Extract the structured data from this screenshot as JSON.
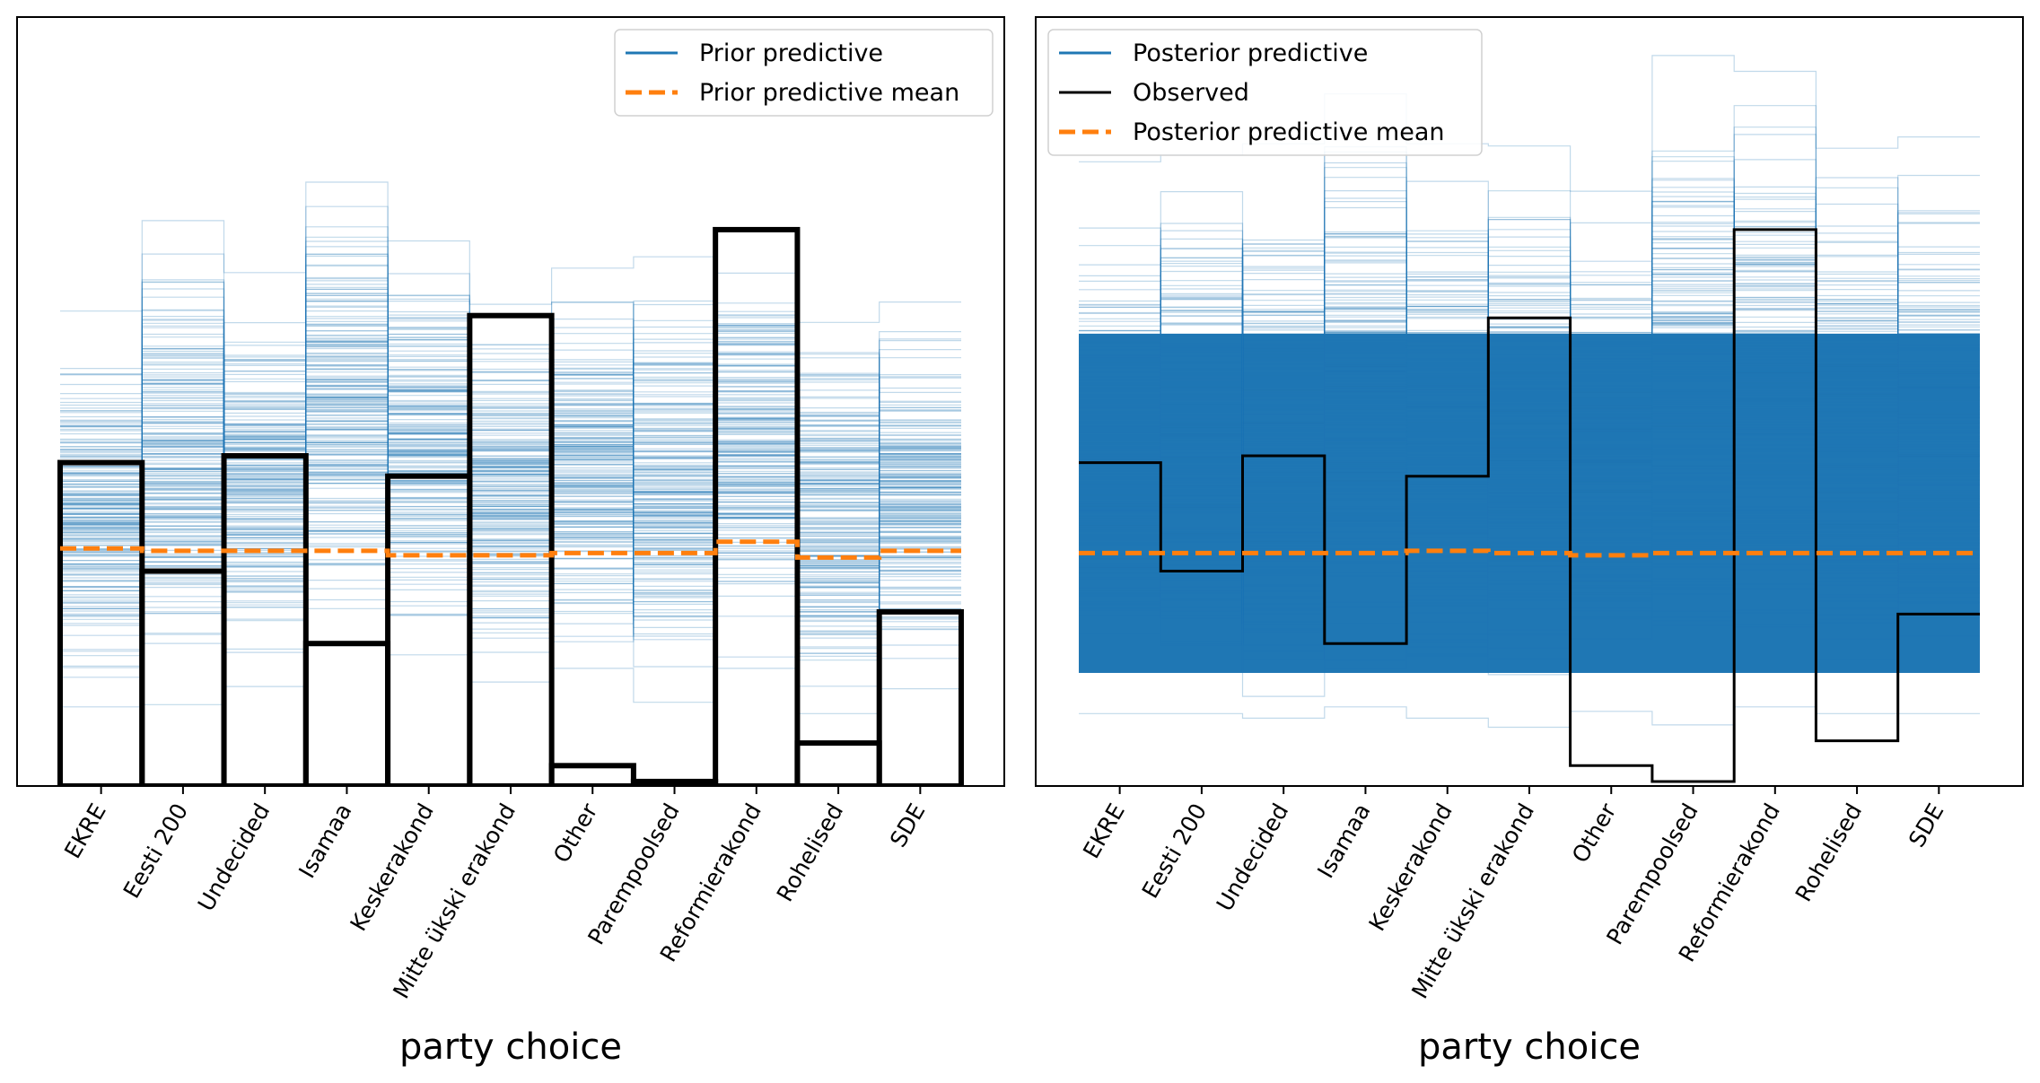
{
  "figure": {
    "background": "#ffffff",
    "colors": {
      "predictive": "#1f77b4",
      "mean": "#ff7f0e",
      "observed": "#000000"
    }
  },
  "chart_data": [
    {
      "type": "line",
      "panel": "prior",
      "title": "",
      "xlabel": "party choice",
      "ylabel": "",
      "categories": [
        "EKRE",
        "Eesti 200",
        "Undecided",
        "Isamaa",
        "Keskerakond",
        "Mitte ükski erakond",
        "Other",
        "Parempoolsed",
        "Reformierakond",
        "Rohelised",
        "SDE"
      ],
      "ylim": [
        0,
        0.34
      ],
      "legend_position": "top-right",
      "legend": [
        "Prior predictive",
        "Prior predictive mean"
      ],
      "series": [
        {
          "name": "Prior predictive mean",
          "style": "dashed",
          "values": [
            0.105,
            0.104,
            0.104,
            0.104,
            0.102,
            0.102,
            0.103,
            0.103,
            0.108,
            0.101,
            0.104
          ]
        },
        {
          "name": "Observed",
          "style": "step-bars",
          "values": [
            0.143,
            0.095,
            0.146,
            0.063,
            0.137,
            0.208,
            0.009,
            0.002,
            0.246,
            0.019,
            0.077
          ]
        }
      ],
      "samples_upper": [
        0.21,
        0.25,
        0.227,
        0.267,
        0.241,
        0.213,
        0.229,
        0.234,
        0.246,
        0.205,
        0.214
      ],
      "samples_lower": [
        0.035,
        0.036,
        0.044,
        0.062,
        0.058,
        0.046,
        0.052,
        0.037,
        0.052,
        0.032,
        0.043
      ]
    },
    {
      "type": "line",
      "panel": "posterior",
      "title": "",
      "xlabel": "party choice",
      "ylabel": "",
      "categories": [
        "EKRE",
        "Eesti 200",
        "Undecided",
        "Isamaa",
        "Keskerakond",
        "Mitte ükski erakond",
        "Other",
        "Parempoolsed",
        "Reformierakond",
        "Rohelised",
        "SDE"
      ],
      "ylim": [
        0,
        0.34
      ],
      "legend_position": "top-left",
      "legend": [
        "Posterior predictive",
        "Observed",
        "Posterior predictive mean"
      ],
      "series": [
        {
          "name": "Posterior predictive mean",
          "style": "dashed",
          "values": [
            0.103,
            0.103,
            0.103,
            0.103,
            0.104,
            0.103,
            0.102,
            0.103,
            0.103,
            0.103,
            0.103
          ]
        },
        {
          "name": "Observed",
          "style": "step",
          "values": [
            0.143,
            0.095,
            0.146,
            0.063,
            0.137,
            0.207,
            0.009,
            0.002,
            0.246,
            0.02,
            0.076
          ]
        }
      ],
      "samples_upper": [
        0.276,
        0.279,
        0.284,
        0.306,
        0.284,
        0.283,
        0.263,
        0.323,
        0.316,
        0.282,
        0.287
      ],
      "samples_lower": [
        0.032,
        0.032,
        0.03,
        0.035,
        0.03,
        0.026,
        0.033,
        0.027,
        0.035,
        0.032,
        0.032
      ],
      "dense_band": [
        0.05,
        0.2
      ]
    }
  ]
}
